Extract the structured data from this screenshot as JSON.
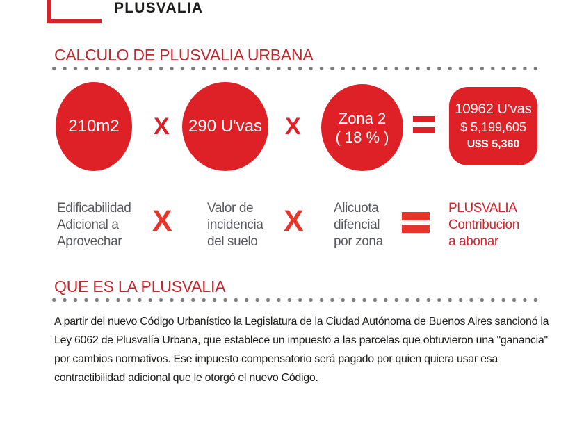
{
  "colors": {
    "shape_red": "#dd2127",
    "title_red": "#c4262c",
    "accent_red": "#d8232a",
    "x_red": "#e6352b",
    "gray_text": "#58595b",
    "black_text": "#1d1d1b",
    "dot_gray": "#7c7c7c",
    "white_text": "#ffffff"
  },
  "header": {
    "brand": "PLUSVALIA"
  },
  "calc_section": {
    "title": "CALCULO DE PLUSVALIA URBANA",
    "formula": {
      "multiply_symbol": "X",
      "circle_area": "210m2",
      "circle_value": "290 U'vas",
      "circle_zone_line1": "Zona 2",
      "circle_zone_line2": "( 18 % )",
      "result_line1": "10962 U'vas",
      "result_line2": "$ 5,199,605",
      "result_line3": "U$S 5,360"
    },
    "legend": {
      "multiply_symbol": "X",
      "factor_area": [
        "Edificabilidad",
        "Adicional a",
        "Aprovechar"
      ],
      "factor_value": [
        "Valor de",
        "incidencia",
        "del suelo"
      ],
      "factor_zone": [
        "Alicuota",
        "difencial",
        "por zona"
      ],
      "result": [
        "PLUSVALIA",
        "Contribucion",
        "a abonar"
      ]
    }
  },
  "about_section": {
    "title": "QUE ES LA PLUSVALIA",
    "paragraph_lines": [
      "A partir del nuevo Código Urbanístico la Legislatura de la Ciudad Autónoma de Buenos Aires sancionó la",
      "Ley 6062 de Plusvalía Urbana, que establece un impuesto a las parcelas que obtuvieron una \"ganancia\"",
      "por cambios normativos. Ese impuesto compensatorio será pagado por quien quiera usar esa",
      "contractibilidad adicional que le otorgó el nuevo Código."
    ]
  }
}
